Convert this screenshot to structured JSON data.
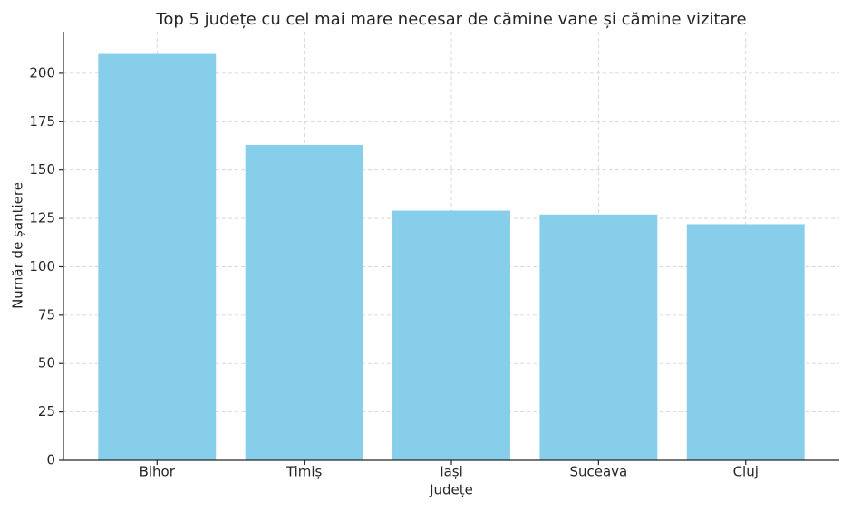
{
  "chart_data": {
    "type": "bar",
    "title": "Top 5 județe cu cel mai mare necesar de cămine vane și cămine vizitare",
    "x_label": "Județe",
    "y_label": "Număr de șantiere",
    "categories": [
      "Bihor",
      "Timiș",
      "Iași",
      "Suceava",
      "Cluj"
    ],
    "values": [
      210,
      163,
      129,
      127,
      122
    ],
    "color": "#87ceeb",
    "ylim": [
      0,
      221.5
    ],
    "yticks": [
      0,
      25,
      50,
      75,
      100,
      125,
      150,
      175,
      200
    ],
    "grid": true
  }
}
